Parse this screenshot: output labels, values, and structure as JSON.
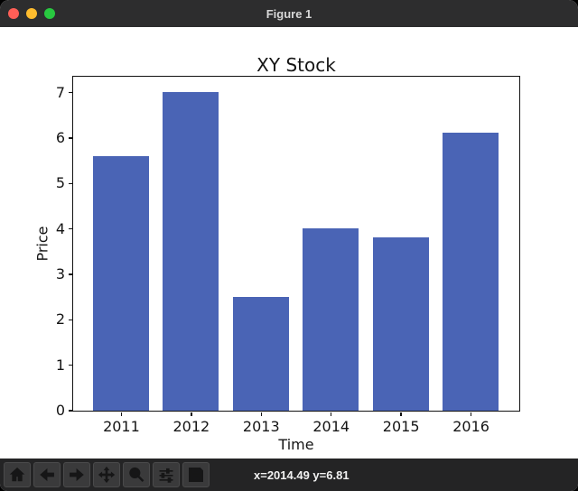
{
  "window": {
    "title": "Figure 1",
    "traffic_lights": [
      {
        "name": "close",
        "color": "#ff5f57"
      },
      {
        "name": "minimize",
        "color": "#febc2e"
      },
      {
        "name": "zoom-window",
        "color": "#28c840"
      }
    ]
  },
  "chart_data": {
    "type": "bar",
    "title": "XY Stock",
    "xlabel": "Time",
    "ylabel": "Price",
    "categories": [
      2011,
      2012,
      2013,
      2014,
      2015,
      2016
    ],
    "values": [
      5.6,
      7.0,
      2.5,
      4.0,
      3.8,
      6.1
    ],
    "bar_color": "#4a64b5",
    "bar_width": 0.8,
    "xlim": [
      2010.31,
      2016.69
    ],
    "ylim": [
      0,
      7.35
    ],
    "yticks": [
      0,
      1,
      2,
      3,
      4,
      5,
      6,
      7
    ],
    "grid": false,
    "legend": null
  },
  "toolbar": {
    "buttons": [
      "home",
      "back",
      "forward",
      "pan",
      "zoom-to-rect",
      "configure-subplots",
      "save"
    ],
    "status": "x=2014.49 y=6.81"
  }
}
